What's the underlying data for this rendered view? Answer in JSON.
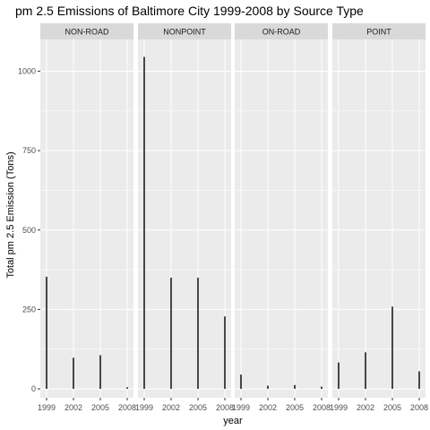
{
  "chart_data": {
    "type": "bar",
    "title": "pm 2.5 Emissions of Baltimore City 1999-2008 by Source Type",
    "xlabel": "year",
    "ylabel": "Total pm 2.5 Emission (Tons)",
    "x_ticks": [
      "1999",
      "2002",
      "2005",
      "2008"
    ],
    "y_ticks": [
      0,
      250,
      500,
      750,
      1000
    ],
    "ylim": [
      -28,
      1100
    ],
    "grid": true,
    "panels": [
      {
        "name": "NON-ROAD",
        "values": [
          353,
          98,
          106,
          5
        ]
      },
      {
        "name": "NONPOINT",
        "values": [
          1045,
          350,
          350,
          228
        ]
      },
      {
        "name": "ON-ROAD",
        "values": [
          45,
          10,
          12,
          7
        ]
      },
      {
        "name": "POINT",
        "values": [
          83,
          115,
          259,
          55
        ]
      }
    ],
    "colors": {
      "panel_background": "#ebebeb",
      "strip_background": "#d9d9d9",
      "grid": "#ffffff",
      "bar": "#000000"
    }
  }
}
